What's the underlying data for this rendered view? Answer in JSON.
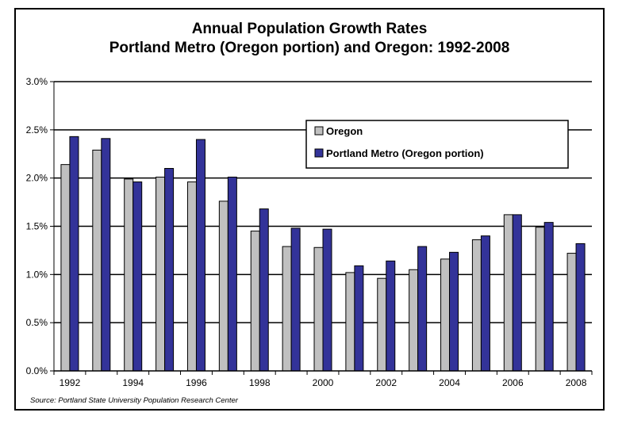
{
  "chart_data": {
    "type": "bar",
    "title": "Annual Population Growth Rates",
    "subtitle": "Portland Metro (Oregon portion) and Oregon: 1992-2008",
    "categories": [
      "1992",
      "1993",
      "1994",
      "1995",
      "1996",
      "1997",
      "1998",
      "1999",
      "2000",
      "2001",
      "2002",
      "2003",
      "2004",
      "2005",
      "2006",
      "2007",
      "2008"
    ],
    "x_tick_labels": [
      "1992",
      "",
      "1994",
      "",
      "1996",
      "",
      "1998",
      "",
      "2000",
      "",
      "2002",
      "",
      "2004",
      "",
      "2006",
      "",
      "2008"
    ],
    "y_tick_labels": [
      "0.0%",
      "0.5%",
      "1.0%",
      "1.5%",
      "2.0%",
      "2.5%",
      "3.0%"
    ],
    "ylim": [
      0,
      3.0
    ],
    "y_unit": "%",
    "grid": true,
    "legend_position": "top-right",
    "series": [
      {
        "name": "Oregon",
        "color": "#c0c0c0",
        "values": [
          2.14,
          2.29,
          1.99,
          2.01,
          1.96,
          1.76,
          1.45,
          1.29,
          1.28,
          1.02,
          0.96,
          1.05,
          1.16,
          1.36,
          1.62,
          1.49,
          1.22
        ]
      },
      {
        "name": "Portland Metro (Oregon portion)",
        "color": "#333399",
        "values": [
          2.43,
          2.41,
          1.96,
          2.1,
          2.4,
          2.01,
          1.68,
          1.48,
          1.47,
          1.09,
          1.14,
          1.29,
          1.23,
          1.4,
          1.62,
          1.54,
          1.32
        ]
      }
    ],
    "source": "Source: Portland State University Population Research Center"
  }
}
